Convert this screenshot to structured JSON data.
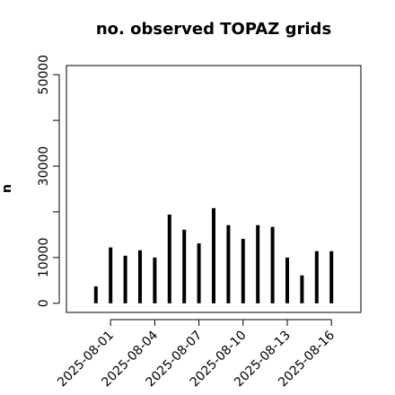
{
  "chart_data": {
    "type": "bar",
    "title": "no. observed TOPAZ grids",
    "y_label": "n",
    "x": [
      "2025-07-31",
      "2025-08-01",
      "2025-08-02",
      "2025-08-03",
      "2025-08-04",
      "2025-08-05",
      "2025-08-06",
      "2025-08-07",
      "2025-08-08",
      "2025-08-09",
      "2025-08-10",
      "2025-08-11",
      "2025-08-12",
      "2025-08-13",
      "2025-08-14",
      "2025-08-15",
      "2025-08-16"
    ],
    "values": [
      3700,
      12200,
      10400,
      11600,
      10000,
      19400,
      16100,
      13100,
      20800,
      17100,
      14100,
      17100,
      16700,
      10000,
      6100,
      11400,
      11400
    ],
    "color": "#000000",
    "xlim": [
      "2025-07-29",
      "2025-08-18"
    ],
    "xticks": [
      "2025-08-01",
      "2025-08-04",
      "2025-08-07",
      "2025-08-10",
      "2025-08-13",
      "2025-08-16"
    ],
    "xtick_highlight": {
      "index": 2,
      "color": "#228b22"
    },
    "ylim": [
      -2000,
      52000
    ],
    "yticks": [
      0,
      10000,
      30000,
      50000
    ],
    "yminor_ticks": [
      20000,
      40000
    ]
  }
}
